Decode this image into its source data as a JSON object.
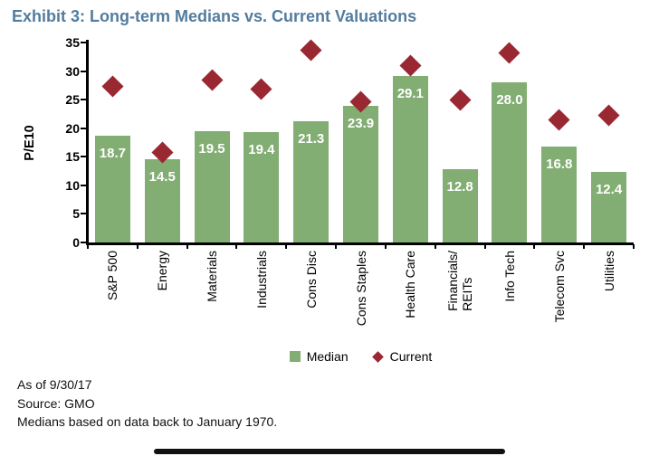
{
  "title": "Exhibit 3: Long-term Medians vs. Current Valuations",
  "colors": {
    "title": "#527c9e",
    "bar": "#82ad73",
    "diamond": "#9a2833",
    "bar_label": "#ffffff",
    "axis": "#000000"
  },
  "chart_data": {
    "type": "bar",
    "title": "Exhibit 3: Long-term Medians vs. Current Valuations",
    "ylabel": "P/E10",
    "ylim": [
      0,
      35
    ],
    "ytick_step": 5,
    "grid": false,
    "legend_position": "bottom",
    "categories": [
      "S&P 500",
      "Energy",
      "Materials",
      "Industrials",
      "Cons Disc",
      "Cons Staples",
      "Health Care",
      "Financials/\nREITs",
      "Info Tech",
      "Telecom Svc",
      "Utilities"
    ],
    "series": [
      {
        "name": "Median",
        "type": "bar",
        "values": [
          18.7,
          14.5,
          19.5,
          19.4,
          21.3,
          23.9,
          29.1,
          12.8,
          28.0,
          16.8,
          12.4
        ],
        "labels_visible": true
      },
      {
        "name": "Current",
        "type": "scatter",
        "marker": "diamond",
        "values": [
          27.3,
          15.7,
          28.4,
          26.9,
          33.6,
          24.7,
          31.0,
          25.0,
          33.2,
          21.4,
          22.2
        ]
      }
    ]
  },
  "legend": {
    "median_label": "Median",
    "current_label": "Current"
  },
  "footer": {
    "line1": "As of 9/30/17",
    "line2": "Source: GMO",
    "line3": "Medians based on data back to January 1970."
  }
}
